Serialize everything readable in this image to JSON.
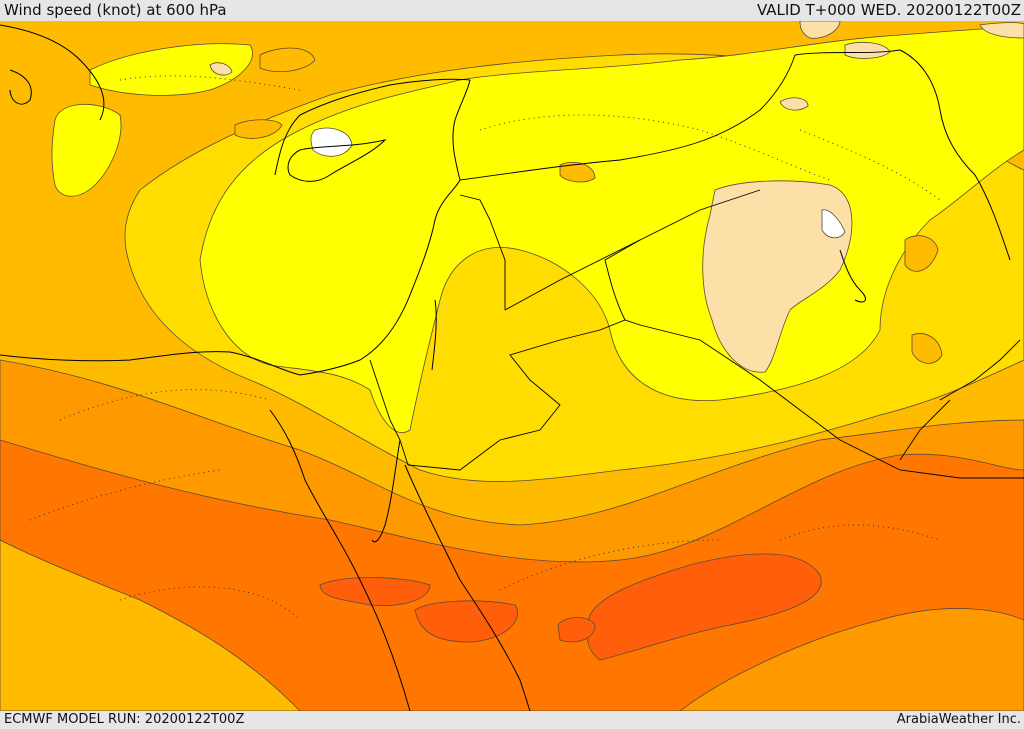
{
  "header": {
    "title": "Wind speed (knot) at 600 hPa",
    "valid": "VALID T+000 WED. 20200122T00Z"
  },
  "footer": {
    "model_run": "ECMWF MODEL RUN: 20200122T00Z",
    "credit": "ArabiaWeather Inc."
  },
  "colors": {
    "calm": "#ffffff",
    "light": "#fde0a8",
    "moderate_low": "#ffff00",
    "moderate": "#ffdd00",
    "moderate_high": "#ffbb00",
    "strong": "#ff9900",
    "very_strong": "#ff7700",
    "extreme": "#ff5f0a",
    "coastline": "#000000",
    "contour": "#5a4a3a"
  }
}
